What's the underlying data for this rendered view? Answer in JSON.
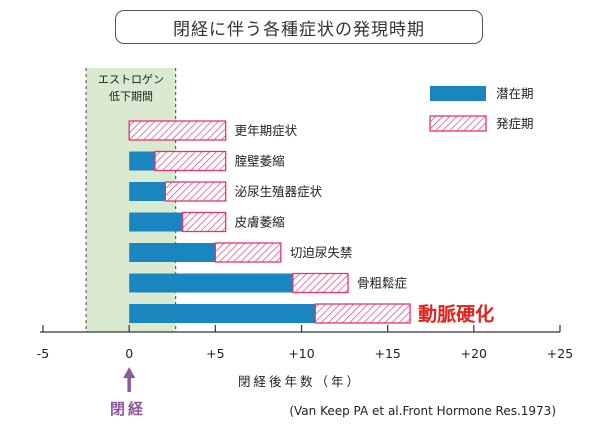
{
  "title": "閉経に伴う各種症状の発現時期",
  "colors": {
    "latent": "#1a86bf",
    "onset_stroke": "#e8336f",
    "highlight_text": "#e8201a",
    "estrogen_band": "#d9ead0",
    "menopause_marker": "#8a5a9a"
  },
  "estrogen_band": {
    "label_line1": "エストロゲン",
    "label_line2": "低下期間",
    "x_start": -2.5,
    "x_end": 2.7
  },
  "menopause_marker": {
    "label": "閉経",
    "x": 0
  },
  "citation": "(Van Keep PA et al.Front Hormone Res.1973)",
  "chart_data": {
    "type": "bar",
    "orientation": "horizontal-stacked",
    "xlabel": "閉経後年数（年）",
    "xlim": [
      -5,
      25
    ],
    "xticks": [
      -5,
      0,
      5,
      10,
      15,
      20,
      25
    ],
    "xtick_labels": [
      "-5",
      "0",
      "+5",
      "+10",
      "+15",
      "+20",
      "+25"
    ],
    "legend": {
      "placement": "top-right",
      "entries": [
        {
          "key": "latent",
          "label": "潜在期"
        },
        {
          "key": "onset",
          "label": "発症期"
        }
      ]
    },
    "categories": [
      "更年期症状",
      "腟壁萎縮",
      "泌尿生殖器症状",
      "皮膚萎縮",
      "切迫尿失禁",
      "骨粗鬆症",
      "動脈硬化"
    ],
    "highlight": "動脈硬化",
    "series": [
      {
        "key": "latent",
        "name": "潜在期",
        "start": [
          0,
          0,
          0,
          0,
          0,
          0,
          0
        ],
        "end": [
          0,
          1.5,
          2.1,
          3.1,
          5,
          9.5,
          10.8
        ]
      },
      {
        "key": "onset",
        "name": "発症期",
        "start": [
          0,
          1.5,
          2.1,
          3.1,
          5,
          9.5,
          10.8
        ],
        "end": [
          5.6,
          5.6,
          5.6,
          5.6,
          8.8,
          12.7,
          16.3
        ]
      }
    ]
  }
}
